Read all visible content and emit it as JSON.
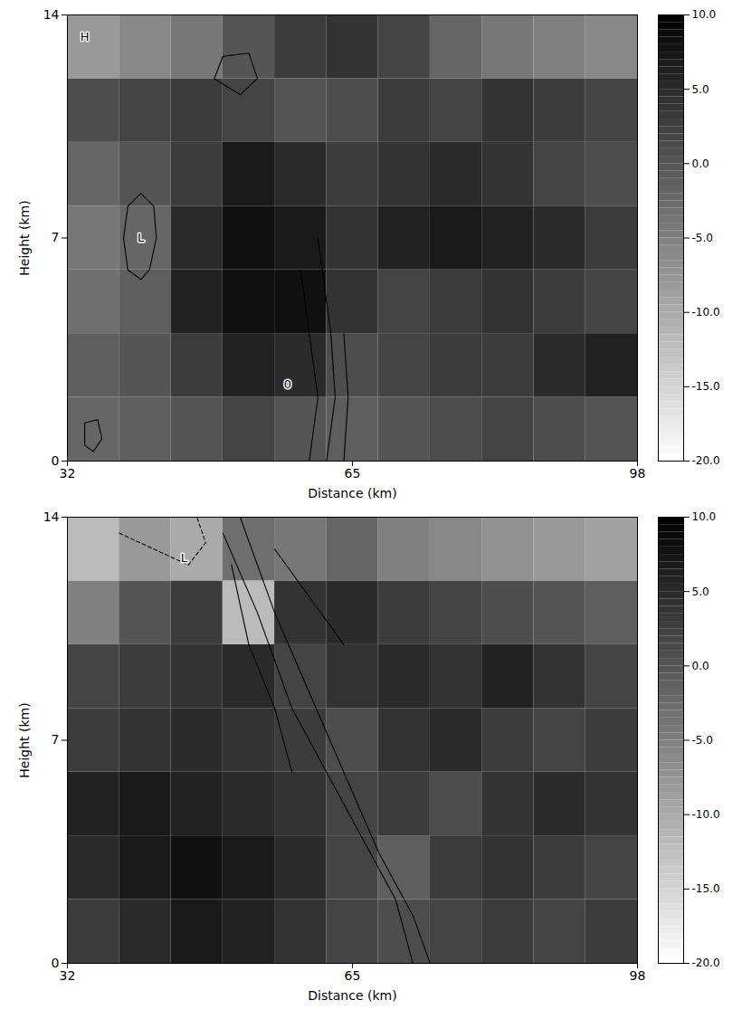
{
  "chart_data": [
    {
      "type": "heatmap",
      "x_label": "Distance (km)",
      "y_label": "Height (km)",
      "xlim": [
        32,
        98
      ],
      "ylim": [
        0,
        14
      ],
      "xticks": [
        32,
        65,
        98
      ],
      "yticks": [
        0,
        7,
        14
      ],
      "cells": {
        "x_edges": [
          32,
          38,
          44,
          50,
          56,
          62,
          68,
          74,
          80,
          86,
          92,
          98
        ],
        "y_edges": [
          0,
          2,
          4,
          6,
          8,
          10,
          12,
          14
        ],
        "values": [
          [
            -2,
            -1,
            0,
            2,
            0,
            -1,
            0,
            1,
            2,
            1,
            0
          ],
          [
            -1,
            0,
            3,
            6,
            5,
            1,
            2,
            3,
            3,
            5,
            6
          ],
          [
            -3,
            -1,
            6,
            8,
            8,
            4,
            2,
            3,
            4,
            3,
            2
          ],
          [
            -4,
            -2,
            5,
            8,
            7,
            4,
            6,
            7,
            6,
            5,
            3
          ],
          [
            -2,
            0,
            3,
            7,
            5,
            3,
            4,
            5,
            4,
            2,
            1
          ],
          [
            1,
            2,
            3,
            2,
            0,
            1,
            3,
            2,
            4,
            3,
            2
          ],
          [
            -8,
            -6,
            -4,
            0,
            3,
            4,
            2,
            -2,
            -4,
            -5,
            -6
          ]
        ]
      },
      "colorbar": {
        "range": [
          -20,
          10
        ],
        "ticks": [
          {
            "value": 10,
            "label": "10.0"
          },
          {
            "value": 5,
            "label": "5.0"
          },
          {
            "value": 0,
            "label": "0.0"
          },
          {
            "value": -5,
            "label": "-5.0"
          },
          {
            "value": -10,
            "label": "-10.0"
          },
          {
            "value": -15,
            "label": "-15.0"
          },
          {
            "value": -20,
            "label": "-20.0"
          }
        ]
      },
      "contours": [
        {
          "line_style": "solid",
          "points": [
            [
              39,
              6
            ],
            [
              38.5,
              7
            ],
            [
              39,
              8
            ],
            [
              40.5,
              8.4
            ],
            [
              42,
              8
            ],
            [
              42.3,
              7
            ],
            [
              41.5,
              6
            ],
            [
              40.5,
              5.7
            ],
            [
              39,
              6
            ]
          ]
        },
        {
          "line_style": "solid",
          "points": [
            [
              60,
              0
            ],
            [
              61,
              2
            ],
            [
              60,
              4
            ],
            [
              59,
              6
            ]
          ]
        },
        {
          "line_style": "solid",
          "points": [
            [
              62,
              0
            ],
            [
              63,
              2
            ],
            [
              62.5,
              4
            ],
            [
              61,
              7
            ]
          ]
        },
        {
          "line_style": "solid",
          "points": [
            [
              64,
              0
            ],
            [
              64.5,
              2
            ],
            [
              64,
              4
            ]
          ]
        },
        {
          "line_style": "solid",
          "points": [
            [
              49,
              12
            ],
            [
              50,
              12.7
            ],
            [
              53,
              12.8
            ],
            [
              54,
              12
            ],
            [
              52,
              11.5
            ],
            [
              49,
              12
            ]
          ]
        },
        {
          "line_style": "solid",
          "points": [
            [
              34,
              0.5
            ],
            [
              34,
              1.2
            ],
            [
              35.5,
              1.3
            ],
            [
              36,
              0.7
            ],
            [
              35,
              0.3
            ],
            [
              34,
              0.5
            ]
          ]
        }
      ],
      "annotations": [
        {
          "text": "H",
          "x": 34,
          "y": 13.3
        },
        {
          "text": "L",
          "x": 40.5,
          "y": 7
        },
        {
          "text": "0",
          "x": 57.5,
          "y": 2.4
        }
      ]
    },
    {
      "type": "heatmap",
      "x_label": "Distance (km)",
      "y_label": "Height (km)",
      "xlim": [
        32,
        98
      ],
      "ylim": [
        0,
        14
      ],
      "xticks": [
        32,
        65,
        98
      ],
      "yticks": [
        0,
        7,
        14
      ],
      "cells": {
        "x_edges": [
          32,
          38,
          44,
          50,
          56,
          62,
          68,
          74,
          80,
          86,
          92,
          98
        ],
        "y_edges": [
          0,
          2,
          4,
          6,
          8,
          10,
          12,
          14
        ],
        "values": [
          [
            3,
            5,
            7,
            6,
            4,
            2,
            1,
            2,
            3,
            2,
            3
          ],
          [
            5,
            7,
            8,
            7,
            5,
            2,
            -1,
            3,
            4,
            3,
            2
          ],
          [
            6,
            7,
            6,
            5,
            4,
            2,
            3,
            1,
            4,
            5,
            4
          ],
          [
            3,
            4,
            5,
            4,
            3,
            1,
            4,
            5,
            3,
            2,
            3
          ],
          [
            2,
            3,
            4,
            5,
            2,
            4,
            5,
            4,
            6,
            4,
            2
          ],
          [
            -5,
            0,
            3,
            -12,
            4,
            5,
            3,
            2,
            1,
            0,
            -1
          ],
          [
            -12,
            -8,
            -10,
            -3,
            -4,
            -2,
            -5,
            -6,
            -7,
            -8,
            -9
          ]
        ]
      },
      "colorbar": {
        "range": [
          -20,
          10
        ],
        "ticks": [
          {
            "value": 10,
            "label": "10.0"
          },
          {
            "value": 5,
            "label": "5.0"
          },
          {
            "value": 0,
            "label": "0.0"
          },
          {
            "value": -5,
            "label": "-5.0"
          },
          {
            "value": -10,
            "label": "-10.0"
          },
          {
            "value": -15,
            "label": "-15.0"
          },
          {
            "value": -20,
            "label": "-20.0"
          }
        ]
      },
      "contours": [
        {
          "line_style": "dashed",
          "points": [
            [
              38,
              13.5
            ],
            [
              42,
              13
            ],
            [
              46,
              12.5
            ],
            [
              48,
              13.2
            ],
            [
              47,
              14
            ]
          ]
        },
        {
          "line_style": "solid",
          "points": [
            [
              50,
              13.5
            ],
            [
              54,
              11
            ],
            [
              58,
              8
            ],
            [
              62,
              6
            ],
            [
              66,
              4
            ],
            [
              70,
              2
            ],
            [
              72,
              0
            ]
          ]
        },
        {
          "line_style": "solid",
          "points": [
            [
              52,
              14
            ],
            [
              56,
              11
            ],
            [
              60,
              8.5
            ],
            [
              64,
              6
            ],
            [
              68,
              3.5
            ],
            [
              72,
              1.5
            ],
            [
              74,
              0
            ]
          ]
        },
        {
          "line_style": "solid",
          "points": [
            [
              51,
              12.5
            ],
            [
              53,
              10
            ],
            [
              56,
              8
            ],
            [
              58,
              6
            ]
          ]
        },
        {
          "line_style": "solid",
          "points": [
            [
              56,
              13
            ],
            [
              60,
              11.5
            ],
            [
              64,
              10
            ]
          ]
        }
      ],
      "annotations": [
        {
          "text": "L",
          "x": 45.5,
          "y": 12.7
        }
      ]
    }
  ]
}
